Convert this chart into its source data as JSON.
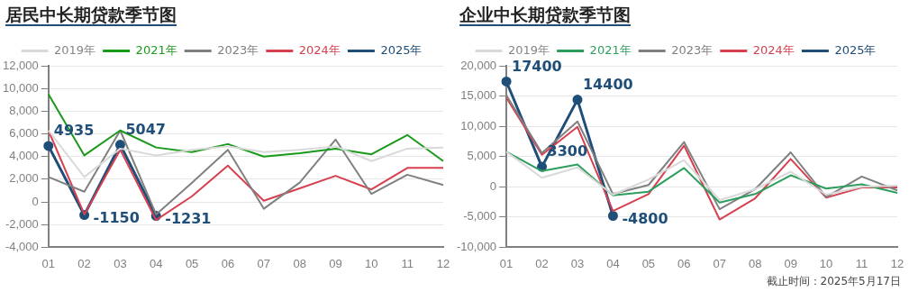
{
  "chart_data": [
    {
      "type": "line",
      "title": "居民中长期贷款季节图",
      "categories": [
        "01",
        "02",
        "03",
        "04",
        "05",
        "06",
        "07",
        "08",
        "09",
        "10",
        "11",
        "12"
      ],
      "series": [
        {
          "name": "2019年",
          "color": "#d9d9d9",
          "values": [
            6300,
            2200,
            4700,
            4100,
            4600,
            4900,
            4400,
            4600,
            4900,
            3600,
            4700,
            4800
          ]
        },
        {
          "name": "2021年",
          "color": "#1a9a1a",
          "values": [
            9500,
            4100,
            6300,
            4800,
            4400,
            5100,
            4000,
            4300,
            4700,
            4200,
            5900,
            3600
          ]
        },
        {
          "name": "2023年",
          "color": "#808080",
          "values": [
            2200,
            900,
            6300,
            -1100,
            1700,
            4600,
            -600,
            1700,
            5500,
            700,
            2400,
            1500
          ]
        },
        {
          "name": "2024年",
          "color": "#d6404f",
          "values": [
            6300,
            -1100,
            4600,
            -1600,
            500,
            3200,
            100,
            1200,
            2300,
            1100,
            3000,
            3000
          ]
        },
        {
          "name": "2025年",
          "color": "#1f4e79",
          "marker": "circle",
          "values": [
            4935,
            -1150,
            5047,
            -1231,
            null,
            null,
            null,
            null,
            null,
            null,
            null,
            null
          ],
          "value_labels": [
            "4935",
            "-1150",
            "5047",
            "-1231",
            null,
            null,
            null,
            null,
            null,
            null,
            null,
            null
          ]
        }
      ],
      "ylim": [
        -4000,
        12000
      ],
      "yticks": [
        {
          "value": -4000,
          "label": "-4,000"
        },
        {
          "value": -2000,
          "label": "-2,000"
        },
        0,
        {
          "value": 2000,
          "label": "2,000"
        },
        {
          "value": 4000,
          "label": "4,000"
        },
        {
          "value": 6000,
          "label": "6,000"
        },
        {
          "value": 8000,
          "label": "8,000"
        },
        {
          "value": 10000,
          "label": "10,000"
        },
        {
          "value": 12000,
          "label": "12,000"
        }
      ],
      "grid": "y",
      "legend": "top",
      "marker": "none"
    },
    {
      "type": "line",
      "title": "企业中长期贷款季节图",
      "categories": [
        "01",
        "02",
        "03",
        "04",
        "05",
        "06",
        "07",
        "08",
        "09",
        "10",
        "11",
        "12"
      ],
      "series": [
        {
          "name": "2019年",
          "color": "#d9d9d9",
          "values": [
            5800,
            1500,
            3200,
            -1300,
            1200,
            4400,
            -2200,
            -400,
            2500,
            -1300,
            0,
            200
          ]
        },
        {
          "name": "2021年",
          "color": "#2e9e5e",
          "values": [
            5800,
            2600,
            3700,
            -1400,
            -800,
            3100,
            -2600,
            -1200,
            1900,
            -300,
            400,
            -1000
          ]
        },
        {
          "name": "2023年",
          "color": "#808080",
          "values": [
            15100,
            5600,
            10800,
            -1200,
            300,
            7400,
            -3700,
            -400,
            5700,
            -1700,
            1700,
            -600
          ]
        },
        {
          "name": "2024年",
          "color": "#d6404f",
          "values": [
            14700,
            5300,
            9900,
            -4000,
            -1200,
            6800,
            -5400,
            -1900,
            4600,
            -1800,
            -100,
            -100
          ]
        },
        {
          "name": "2025年",
          "color": "#1f4e79",
          "marker": "circle",
          "values": [
            17400,
            3300,
            14400,
            -4800,
            null,
            null,
            null,
            null,
            null,
            null,
            null,
            null
          ],
          "value_labels": [
            "17400",
            "3300",
            "14400",
            "-4800",
            null,
            null,
            null,
            null,
            null,
            null,
            null,
            null
          ]
        }
      ],
      "ylim": [
        -10000,
        20000
      ],
      "yticks": [
        {
          "value": -10000,
          "label": "-10,000"
        },
        {
          "value": -5000,
          "label": "-5,000"
        },
        0,
        {
          "value": 5000,
          "label": "5,000"
        },
        {
          "value": 10000,
          "label": "10,000"
        },
        {
          "value": 15000,
          "label": "15,000"
        },
        {
          "value": 20000,
          "label": "20,000"
        }
      ],
      "grid": "y",
      "legend": "top",
      "marker": "none",
      "annotations": [
        "截止时间：2025年5月17日"
      ]
    }
  ]
}
